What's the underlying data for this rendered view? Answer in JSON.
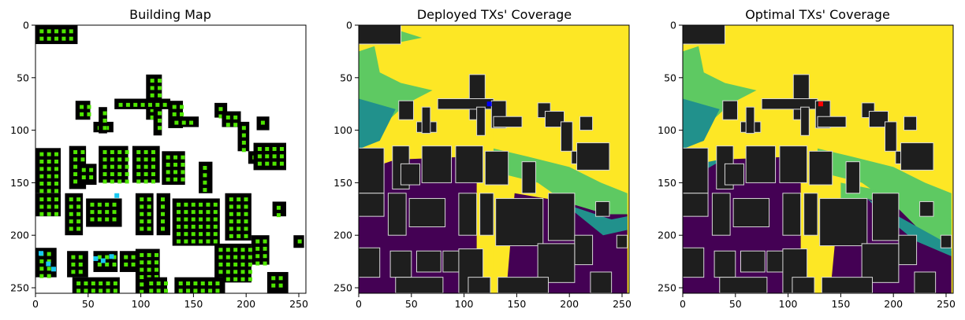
{
  "figure": {
    "panels": [
      {
        "title": "Building Map",
        "x_ticks": [
          "0",
          "50",
          "100",
          "150",
          "200",
          "250"
        ],
        "y_ticks": [
          "0",
          "50",
          "100",
          "150",
          "200",
          "250"
        ]
      },
      {
        "title": "Deployed TXs' Coverage",
        "x_ticks": [
          "0",
          "50",
          "100",
          "150",
          "200",
          "250"
        ],
        "y_ticks": [
          "0",
          "50",
          "100",
          "150",
          "200",
          "250"
        ]
      },
      {
        "title": "Optimal TXs' Coverage",
        "x_ticks": [
          "0",
          "50",
          "100",
          "150",
          "200",
          "250"
        ],
        "y_ticks": [
          "0",
          "50",
          "100",
          "150",
          "200",
          "250"
        ]
      }
    ]
  },
  "chart_data": [
    {
      "type": "heatmap",
      "title": "Building Map",
      "xlim": [
        0,
        255
      ],
      "ylim": [
        255,
        0
      ],
      "image_size": [
        256,
        256
      ],
      "description_colors": {
        "building": "#000000",
        "candidate_tx": "#4ee600",
        "deployed_tx": "#19c8f0",
        "background": "#ffffff"
      }
    },
    {
      "type": "heatmap",
      "title": "Deployed TXs' Coverage",
      "xlim": [
        0,
        255
      ],
      "ylim": [
        255,
        0
      ],
      "image_size": [
        256,
        256
      ],
      "colormap": [
        "#440154",
        "#21918c",
        "#5ec962",
        "#fde725"
      ],
      "tx_marker": {
        "x": 124,
        "y": 75,
        "color": "#0000ff"
      }
    },
    {
      "type": "heatmap",
      "title": "Optimal TXs' Coverage",
      "xlim": [
        0,
        255
      ],
      "ylim": [
        255,
        0
      ],
      "image_size": [
        256,
        256
      ],
      "colormap": [
        "#440154",
        "#21918c",
        "#5ec962",
        "#fde725"
      ],
      "tx_marker": {
        "x": 131,
        "y": 75,
        "color": "#ff0000"
      }
    }
  ]
}
